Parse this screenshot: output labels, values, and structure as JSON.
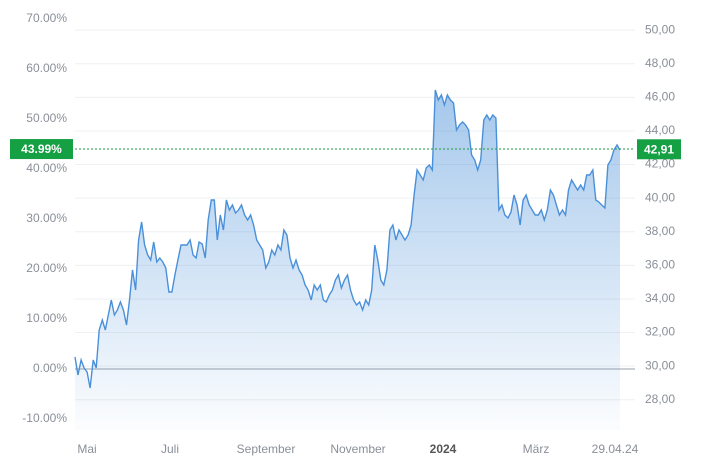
{
  "chart_data": {
    "type": "area",
    "x_labels": [
      "Mai",
      "Juli",
      "September",
      "November",
      "2024",
      "März",
      "29.04.24"
    ],
    "series": [
      {
        "color": "#4a90d9",
        "values": [
          2.4,
          -1.2,
          1.8,
          0.2,
          -0.6,
          -3.8,
          1.8,
          0.2,
          7.8,
          9.8,
          7.8,
          10.8,
          13.8,
          10.8,
          11.8,
          13.4,
          11.8,
          8.8,
          13.8,
          19.8,
          15.8,
          25.8,
          29.4,
          24.8,
          22.8,
          21.8,
          25.4,
          21.4,
          22.2,
          21.4,
          20.2,
          15.4,
          15.4,
          18.8,
          21.8,
          24.8,
          24.8,
          24.8,
          25.8,
          22.8,
          22.2,
          25.4,
          25,
          22.2,
          29.8,
          33.8,
          33.8,
          25.8,
          30.8,
          27.8,
          33.8,
          31.8,
          32.8,
          31.2,
          31.8,
          32.8,
          30.8,
          29.8,
          30.8,
          28.8,
          25.8,
          24.8,
          23.8,
          20.2,
          21.4,
          23.8,
          22.8,
          24.8,
          23.8,
          27.8,
          26.8,
          22.2,
          20.2,
          21.8,
          19.8,
          18.8,
          16.8,
          15.8,
          13.8,
          16.8,
          15.8,
          16.8,
          13.8,
          13.4,
          14.8,
          15.8,
          17.8,
          18.8,
          16.2,
          17.8,
          18.8,
          15.8,
          13.8,
          12.8,
          13.4,
          11.8,
          13.8,
          12.8,
          15.8,
          24.8,
          21.8,
          17.8,
          16.8,
          19.8,
          27.8,
          28.8,
          25.8,
          27.8,
          26.8,
          25.8,
          26.8,
          28.8,
          34.8,
          39.8,
          38.8,
          37.8,
          40.2,
          40.8,
          39.8,
          55.8,
          53.8,
          54.8,
          52.8,
          54.8,
          53.8,
          53.2,
          47.8,
          48.8,
          49.4,
          48.8,
          47.8,
          42.8,
          41.8,
          39.8,
          41.8,
          49.8,
          50.8,
          49.8,
          50.8,
          50.2,
          31.8,
          32.8,
          30.8,
          30.2,
          31.4,
          34.8,
          32.8,
          28.8,
          33.8,
          34.8,
          32.8,
          31.8,
          30.8,
          30.8,
          31.8,
          29.8,
          31.8,
          35.8,
          34.8,
          32.8,
          30.8,
          31.8,
          30.8,
          35.8,
          37.8,
          36.8,
          35.8,
          36.8,
          35.8,
          38.8,
          38.8,
          39.8,
          33.8,
          33.4,
          32.8,
          32.2,
          40.8,
          41.8,
          43.8,
          44.8,
          43.8
        ]
      }
    ],
    "ylim": [
      -12.2,
      71.8
    ],
    "yticks": [
      {
        "value": -10,
        "label": "-10.00%"
      },
      {
        "value": 0,
        "label": "0.00%"
      },
      {
        "value": 10,
        "label": "10.00%"
      },
      {
        "value": 20,
        "label": "20.00%"
      },
      {
        "value": 30,
        "label": "30.00%"
      },
      {
        "value": 40,
        "label": "40.00%"
      },
      {
        "value": 50,
        "label": "50.00%"
      },
      {
        "value": 60,
        "label": "60.00%"
      },
      {
        "value": 70,
        "label": "70.00%"
      }
    ],
    "y2lim": [
      26.2,
      51.2
    ],
    "y2ticks": [
      {
        "value": 28,
        "label": "28,00"
      },
      {
        "value": 30,
        "label": "30,00"
      },
      {
        "value": 32,
        "label": "32,00"
      },
      {
        "value": 34,
        "label": "34,00"
      },
      {
        "value": 36,
        "label": "36,00"
      },
      {
        "value": 38,
        "label": "38,00"
      },
      {
        "value": 40,
        "label": "40,00"
      },
      {
        "value": 42,
        "label": "42,00"
      },
      {
        "value": 44,
        "label": "44,00"
      },
      {
        "value": 46,
        "label": "46,00"
      },
      {
        "value": 48,
        "label": "48,00"
      },
      {
        "value": 50,
        "label": "50,00"
      }
    ],
    "current_percent": {
      "value": 43.99,
      "label": "43.99%"
    },
    "current_price": {
      "value": 42.91,
      "label": "42,91"
    },
    "grid": true
  }
}
